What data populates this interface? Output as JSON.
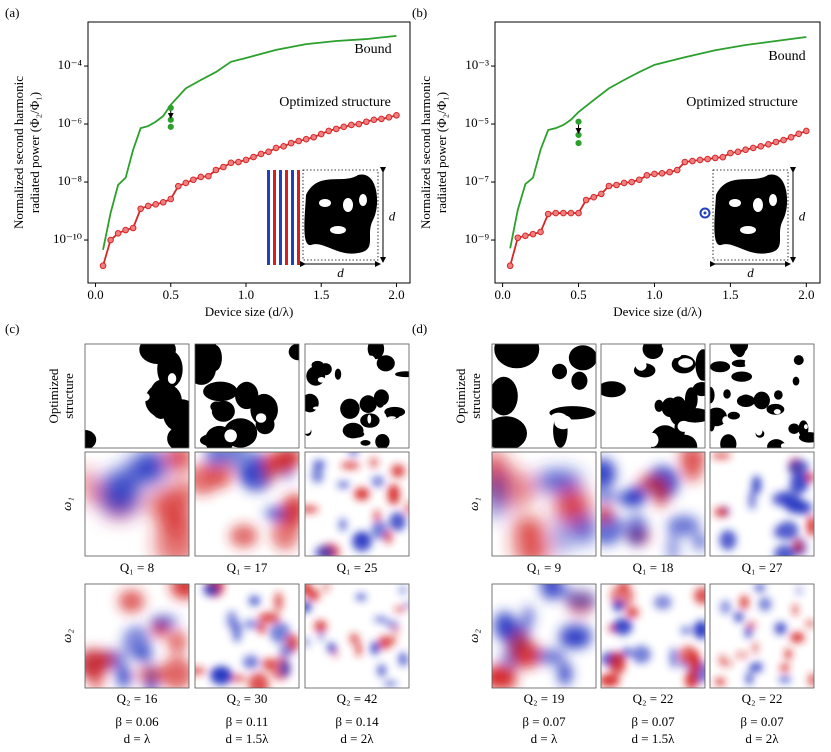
{
  "chart_data": [
    {
      "type": "line",
      "label": "(a)",
      "log": true,
      "ylabel": [
        "Normalized second harmonic",
        "radiated power (Φ₂/Φ₁)"
      ],
      "xlabel": "Device size (d/λ)",
      "xlim": [
        -0.05,
        2.09
      ],
      "ylim": [
        3.3e-12,
        0.0033
      ],
      "xticks": [
        {
          "value": 0,
          "label": "0.0"
        },
        0.5,
        {
          "value": 1,
          "label": "1.0"
        },
        1.5,
        {
          "value": 2,
          "label": "2.0"
        }
      ],
      "yticks": [
        {
          "value": 1e-10,
          "label": "10⁻¹⁰"
        },
        {
          "value": 1e-08,
          "label": "10⁻⁸"
        },
        {
          "value": 1e-06,
          "label": "10⁻⁶"
        },
        {
          "value": 0.0001,
          "label": "10⁻⁴"
        }
      ],
      "inset_labels": [
        "d",
        "d"
      ],
      "series": [
        {
          "name": "Bound",
          "color": "#2ca02c",
          "marker": false,
          "x": [
            0.05,
            0.1,
            0.15,
            0.2,
            0.25,
            0.3,
            0.35,
            0.4,
            0.45,
            0.5,
            0.6,
            0.7,
            0.8,
            0.9,
            1.0,
            1.2,
            1.4,
            1.6,
            1.8,
            2.0
          ],
          "values": [
            4.6e-11,
            8.5e-10,
            7.9e-09,
            1.4e-08,
            1.3e-07,
            7.2e-07,
            8.5e-07,
            1.2e-06,
            1.9e-06,
            4.6e-06,
            1.7e-05,
            3.3e-05,
            6.2e-05,
            0.00014,
            0.00019,
            0.00036,
            0.00057,
            0.00073,
            0.00085,
            0.0011
          ]
        },
        {
          "name": "Optimized structure",
          "color": "#d62728",
          "marker": true,
          "x": [
            0.05,
            0.1,
            0.15,
            0.2,
            0.25,
            0.3,
            0.35,
            0.4,
            0.45,
            0.5,
            0.55,
            0.6,
            0.65,
            0.7,
            0.75,
            0.8,
            0.85,
            0.9,
            0.95,
            1.0,
            1.05,
            1.1,
            1.15,
            1.2,
            1.25,
            1.3,
            1.35,
            1.4,
            1.45,
            1.5,
            1.55,
            1.6,
            1.65,
            1.7,
            1.75,
            1.8,
            1.85,
            1.9,
            1.95,
            2.0
          ],
          "values": [
            1.3e-11,
            1e-10,
            1.7e-10,
            2.2e-10,
            2.6e-10,
            1.2e-09,
            1.5e-09,
            1.7e-09,
            2e-09,
            2.6e-09,
            7.2e-09,
            9.3e-09,
            1.2e-08,
            1.5e-08,
            1.6e-08,
            2.6e-08,
            3.3e-08,
            4.6e-08,
            4.9e-08,
            5.8e-08,
            7.3e-08,
            9.3e-08,
            1.1e-07,
            1.5e-07,
            1.7e-07,
            2.2e-07,
            2.6e-07,
            3e-07,
            3.5e-07,
            4.5e-07,
            5.8e-07,
            6.8e-07,
            8e-07,
            9.3e-07,
            1e-06,
            1.2e-06,
            1.4e-06,
            1.5e-06,
            1.7e-06,
            2e-06
          ]
        },
        {
          "color": "#2ca02c",
          "marker": true,
          "line": false,
          "x": [
            0.5,
            0.5,
            0.5
          ],
          "values": [
            3.6e-06,
            1.4e-06,
            8e-07
          ]
        }
      ]
    },
    {
      "type": "line",
      "label": "(b)",
      "log": true,
      "ylabel": [
        "Normalized second harmonic",
        "radiated power (Φ₂/Φ₁)"
      ],
      "xlabel": "Device size (d/λ)",
      "xlim": [
        -0.05,
        2.09
      ],
      "ylim": [
        3.3e-11,
        0.033
      ],
      "xticks": [
        {
          "value": 0,
          "label": "0.0"
        },
        0.5,
        {
          "value": 1,
          "label": "1.0"
        },
        1.5,
        {
          "value": 2,
          "label": "2.0"
        }
      ],
      "yticks": [
        {
          "value": 1e-09,
          "label": "10⁻⁹"
        },
        {
          "value": 1e-07,
          "label": "10⁻⁷"
        },
        {
          "value": 1e-05,
          "label": "10⁻⁵"
        },
        {
          "value": 0.001,
          "label": "10⁻³"
        }
      ],
      "inset_labels": [
        "d",
        "d"
      ],
      "series": [
        {
          "name": "Bound",
          "color": "#2ca02c",
          "marker": false,
          "x": [
            0.05,
            0.1,
            0.15,
            0.2,
            0.25,
            0.3,
            0.35,
            0.4,
            0.45,
            0.5,
            0.6,
            0.7,
            0.8,
            0.9,
            1.0,
            1.2,
            1.4,
            1.6,
            1.8,
            2.0
          ],
          "values": [
            5.2e-10,
            1.1e-08,
            8.5e-08,
            1.4e-07,
            1.3e-06,
            6.2e-06,
            7.2e-06,
            9.3e-06,
            1.4e-05,
            2.6e-05,
            6.7e-05,
            0.00017,
            0.00033,
            0.00062,
            0.0011,
            0.002,
            0.0035,
            0.0053,
            0.0073,
            0.01
          ]
        },
        {
          "name": "Optimized structure",
          "color": "#d62728",
          "marker": true,
          "x": [
            0.05,
            0.1,
            0.15,
            0.2,
            0.25,
            0.3,
            0.35,
            0.4,
            0.45,
            0.5,
            0.55,
            0.6,
            0.65,
            0.7,
            0.75,
            0.8,
            0.85,
            0.9,
            0.95,
            1.0,
            1.05,
            1.1,
            1.15,
            1.2,
            1.25,
            1.3,
            1.35,
            1.4,
            1.45,
            1.5,
            1.55,
            1.6,
            1.65,
            1.7,
            1.75,
            1.8,
            1.85,
            1.9,
            1.95,
            2.0
          ],
          "values": [
            1.3e-10,
            1.2e-09,
            1.4e-09,
            1.6e-09,
            1.9e-09,
            7.9e-09,
            8.5e-09,
            8.5e-09,
            8.5e-09,
            8.5e-09,
            2.4e-08,
            3e-08,
            3.9e-08,
            7.3e-08,
            7.9e-08,
            9.3e-08,
            1e-07,
            1.2e-07,
            1.7e-07,
            1.9e-07,
            2e-07,
            2.2e-07,
            2.6e-07,
            4.9e-07,
            5.3e-07,
            5.8e-07,
            6.2e-07,
            6.8e-07,
            7.2e-07,
            1e-06,
            1.1e-06,
            1.3e-06,
            1.5e-06,
            1.7e-06,
            2e-06,
            2.4e-06,
            2.8e-06,
            3.5e-06,
            4.6e-06,
            5.8e-06
          ]
        },
        {
          "color": "#2ca02c",
          "marker": true,
          "line": false,
          "x": [
            0.5,
            0.5,
            0.5
          ],
          "values": [
            1.2e-05,
            4.2e-06,
            2.2e-06
          ]
        }
      ]
    }
  ],
  "panels": [
    {
      "label": "(c)",
      "structure_label": [
        "Optimized",
        "structure"
      ],
      "field_labels": [
        "ω₁",
        "ω₂"
      ],
      "columns": [
        {
          "q1": "Q₁ = 8",
          "q2": "Q₂ = 16",
          "beta": "β = 0.06",
          "d": "d = λ"
        },
        {
          "q1": "Q₁ = 17",
          "q2": "Q₂ = 30",
          "beta": "β = 0.11",
          "d": "d = 1.5λ"
        },
        {
          "q1": "Q₁ = 25",
          "q2": "Q₂ = 42",
          "beta": "β = 0.14",
          "d": "d = 2λ"
        }
      ]
    },
    {
      "label": "(d)",
      "structure_label": [
        "Optimized",
        "structure"
      ],
      "field_labels": [
        "ω₁",
        "ω₂"
      ],
      "columns": [
        {
          "q1": "Q₁ = 9",
          "q2": "Q₂ = 19",
          "beta": "β = 0.07",
          "d": "d = λ"
        },
        {
          "q1": "Q₁ = 18",
          "q2": "Q₂ = 22",
          "beta": "β = 0.07",
          "d": "d = 1.5λ"
        },
        {
          "q1": "Q₁ = 27",
          "q2": "Q₂ = 22",
          "beta": "β = 0.07",
          "d": "d = 2λ"
        }
      ]
    }
  ]
}
